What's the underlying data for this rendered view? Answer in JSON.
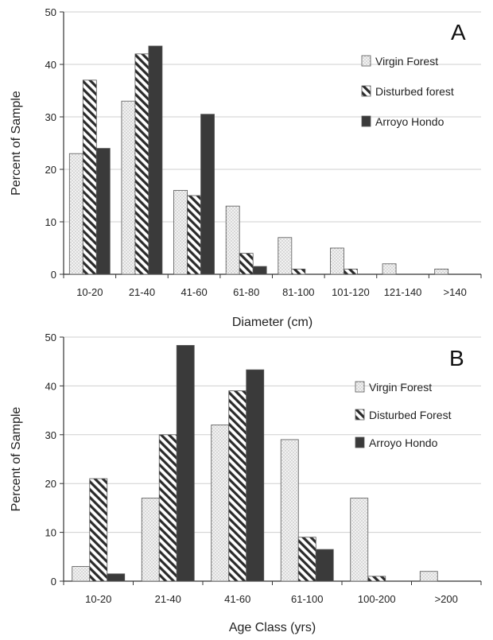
{
  "chart_data": [
    {
      "type": "bar",
      "panel_label": "A",
      "xlabel": "Diameter (cm)",
      "ylabel": "Percent of Sample",
      "ylim": [
        0,
        50
      ],
      "yticks": [
        0,
        10,
        20,
        30,
        40,
        50
      ],
      "categories": [
        "10-20",
        "21-40",
        "41-60",
        "61-80",
        "81-100",
        "101-120",
        "121-140",
        ">140"
      ],
      "legend_position": "top-right",
      "grid": true,
      "series": [
        {
          "name": "Virgin Forest",
          "pattern": "dotted",
          "color": "#e8e8e8",
          "values": [
            23,
            33,
            16,
            13,
            7,
            5,
            2,
            1
          ]
        },
        {
          "name": "Disturbed forest",
          "pattern": "hatched",
          "color": "#333333",
          "values": [
            37,
            42,
            15,
            4,
            1,
            1,
            0,
            0
          ]
        },
        {
          "name": "Arroyo Hondo",
          "pattern": "solid",
          "color": "#3a3a3a",
          "values": [
            24,
            43.5,
            30.5,
            1.5,
            0,
            0,
            0,
            0
          ]
        }
      ]
    },
    {
      "type": "bar",
      "panel_label": "B",
      "xlabel": "Age Class (yrs)",
      "ylabel": "Percent of Sample",
      "ylim": [
        0,
        50
      ],
      "yticks": [
        0,
        10,
        20,
        30,
        40,
        50
      ],
      "categories": [
        "10-20",
        "21-40",
        "41-60",
        "61-100",
        "100-200",
        ">200"
      ],
      "legend_position": "top-right",
      "grid": true,
      "series": [
        {
          "name": "Virgin Forest",
          "pattern": "dotted",
          "color": "#e8e8e8",
          "values": [
            3,
            17,
            32,
            29,
            17,
            2
          ]
        },
        {
          "name": "Disturbed Forest",
          "pattern": "hatched",
          "color": "#333333",
          "values": [
            21,
            30,
            39,
            9,
            1,
            0
          ]
        },
        {
          "name": "Arroyo Hondo",
          "pattern": "solid",
          "color": "#3a3a3a",
          "values": [
            1.5,
            48.3,
            43.3,
            6.5,
            0,
            0
          ]
        }
      ]
    }
  ]
}
